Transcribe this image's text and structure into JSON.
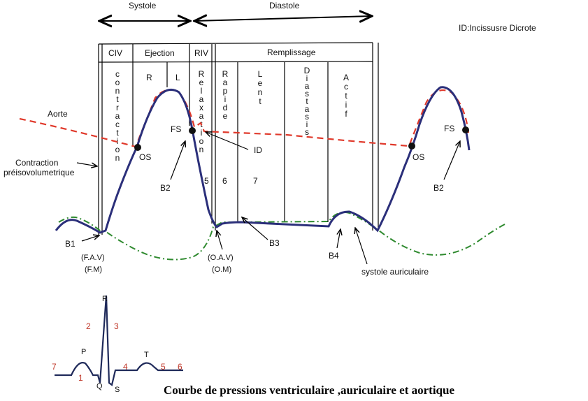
{
  "header": {
    "systole": "Systole",
    "diastole": "Diastole",
    "note": "ID:Incissusre Dicrote"
  },
  "table": {
    "phases": [
      "CIV",
      "Ejection",
      "RIV",
      "Remplissage"
    ],
    "ejection_sub": [
      "R",
      "L"
    ],
    "columns": [
      {
        "name": "contraction",
        "letters": [
          "c",
          "o",
          "n",
          "t",
          "r",
          "a",
          "c",
          "t",
          "i",
          "o",
          "n"
        ]
      },
      {
        "name": "relaxation",
        "letters": [
          "R",
          "e",
          "l",
          "a",
          "x",
          "a",
          "t",
          "i",
          "o",
          "n"
        ]
      },
      {
        "name": "rapide",
        "letters": [
          "R",
          "a",
          "p",
          "i",
          "d",
          "e"
        ]
      },
      {
        "name": "lent",
        "letters": [
          "L",
          "e",
          "n",
          "t"
        ]
      },
      {
        "name": "diastasis",
        "letters": [
          "D",
          "i",
          "a",
          "s",
          "t",
          "a",
          "s",
          "i",
          "s"
        ]
      },
      {
        "name": "actif",
        "letters": [
          "A",
          "c",
          "t",
          "i",
          "f"
        ]
      }
    ],
    "numbers": [
      "5",
      "6",
      "7"
    ]
  },
  "labels": {
    "aorte": "Aorte",
    "contraction_line1": "Contraction",
    "contraction_line2": "préisovolumetrique",
    "os1": "OS",
    "fs1": "FS",
    "b2_1": "B2",
    "id": "ID",
    "os2": "OS",
    "fs2": "FS",
    "b2_2": "B2",
    "b1": "B1",
    "fav": "(F.A.V)",
    "fm": "(F.M)",
    "oav": "(O.A.V)",
    "om": "(O.M)",
    "b3": "B3",
    "b4": "B4",
    "systole_auric": "systole auriculaire"
  },
  "ecg": {
    "R": "R",
    "P": "P",
    "T": "T",
    "Q": "Q",
    "S": "S",
    "phases": [
      "1",
      "2",
      "3",
      "4",
      "5",
      "6",
      "7"
    ]
  },
  "caption": "Courbe de pressions ventriculaire ,auriculaire et aortique",
  "colors": {
    "ventricle": "#2b2f7a",
    "aorta": "#e0392b",
    "atrium": "#2f8a2f",
    "ecg": "#1f2a5a",
    "ecg_numbers": "#c0392b"
  }
}
